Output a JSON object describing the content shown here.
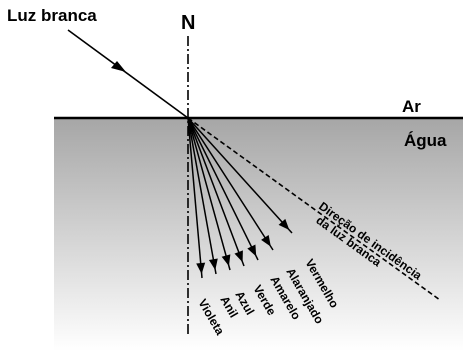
{
  "incident_label": "Luz branca",
  "normal_label": "N",
  "medium_top": "Ar",
  "medium_bottom": "Água",
  "incidence_direction_label": [
    "Direção de incidência",
    "da luz branca"
  ],
  "colors": [
    "Violeta",
    "Anil",
    "Azul",
    "Verde",
    "Amarelo",
    "Alaranjado",
    "Vermelho"
  ],
  "water_gradient": [
    "#a6a6a6",
    "#ffffff"
  ]
}
